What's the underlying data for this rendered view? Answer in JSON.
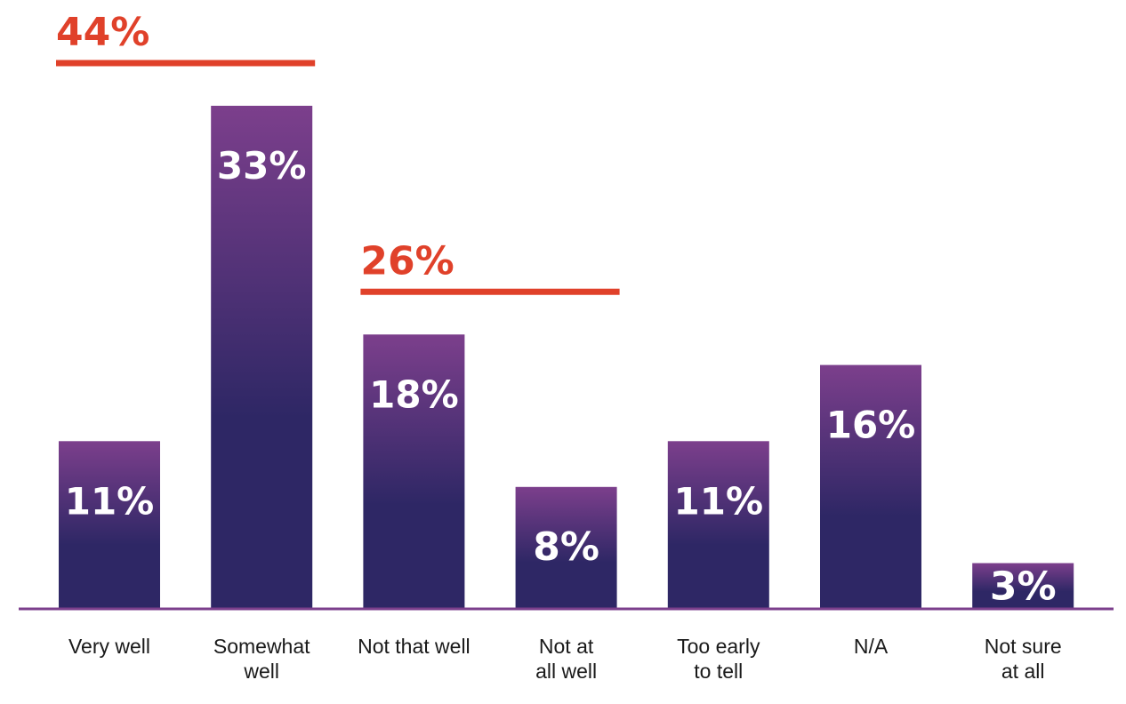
{
  "chart_data": {
    "type": "bar",
    "categories": [
      [
        "Very well"
      ],
      [
        "Somewhat",
        "well"
      ],
      [
        "Not that well"
      ],
      [
        "Not at",
        "all well"
      ],
      [
        "Too early",
        "to tell"
      ],
      [
        "N/A"
      ],
      [
        "Not sure",
        "at all"
      ]
    ],
    "values": [
      11,
      33,
      18,
      8,
      11,
      16,
      3
    ],
    "data_labels": [
      "11%",
      "33%",
      "18%",
      "8%",
      "11%",
      "16%",
      "3%"
    ],
    "group_totals": [
      {
        "label": "44%",
        "value": 44,
        "category_span": [
          0,
          1
        ]
      },
      {
        "label": "26%",
        "value": 26,
        "category_span": [
          2,
          3
        ]
      }
    ],
    "ylim": [
      0,
      33
    ],
    "grid": false,
    "legend": "none",
    "colors": {
      "bar_top": "#7c3f8c",
      "bar_bottom": "#2e2765",
      "axis": "#7c3f8c",
      "group_total": "#e0412a"
    }
  }
}
